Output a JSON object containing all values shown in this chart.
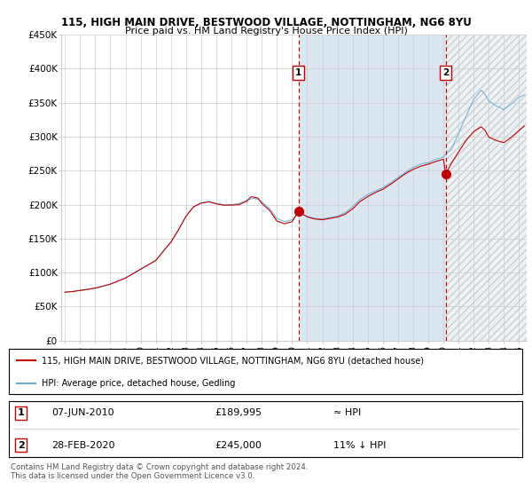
{
  "title1": "115, HIGH MAIN DRIVE, BESTWOOD VILLAGE, NOTTINGHAM, NG6 8YU",
  "title2": "Price paid vs. HM Land Registry's House Price Index (HPI)",
  "ylabel_ticks": [
    "£0",
    "£50K",
    "£100K",
    "£150K",
    "£200K",
    "£250K",
    "£300K",
    "£350K",
    "£400K",
    "£450K"
  ],
  "ylim": [
    0,
    450000
  ],
  "xlim_start": 1994.75,
  "xlim_end": 2025.5,
  "sale1_x": 2010.44,
  "sale1_y": 189995,
  "sale1_label": "1",
  "sale1_date": "07-JUN-2010",
  "sale1_price": "£189,995",
  "sale1_hpi": "≈ HPI",
  "sale2_x": 2020.16,
  "sale2_y": 245000,
  "sale2_label": "2",
  "sale2_date": "28-FEB-2020",
  "sale2_price": "£245,000",
  "sale2_hpi": "11% ↓ HPI",
  "hpi_color": "#6baed6",
  "price_color": "#c00000",
  "marker_box_color": "#c00000",
  "plot_bg_color": "#ffffff",
  "shade_color": "#dce6f1",
  "legend_line1": "115, HIGH MAIN DRIVE, BESTWOOD VILLAGE, NOTTINGHAM, NG6 8YU (detached house)",
  "legend_line2": "HPI: Average price, detached house, Gedling",
  "footnote": "Contains HM Land Registry data © Crown copyright and database right 2024.\nThis data is licensed under the Open Government Licence v3.0."
}
